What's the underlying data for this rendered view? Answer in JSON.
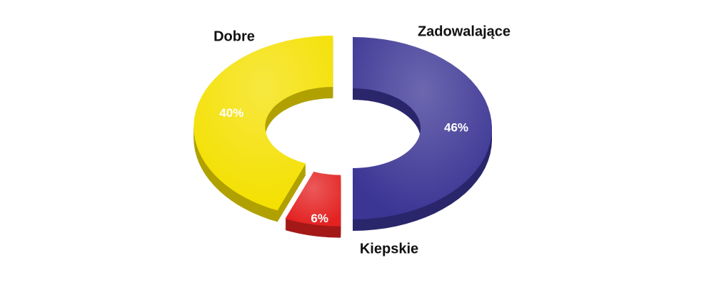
{
  "chart_data": {
    "type": "doughnut",
    "categories": [
      "Zadowalające",
      "Kiepskie",
      "Dobre"
    ],
    "values": [
      46,
      6,
      40
    ],
    "value_labels": [
      "46%",
      "6%",
      "40%"
    ],
    "colors": [
      "#3b3594",
      "#e42222",
      "#f4e000"
    ]
  }
}
